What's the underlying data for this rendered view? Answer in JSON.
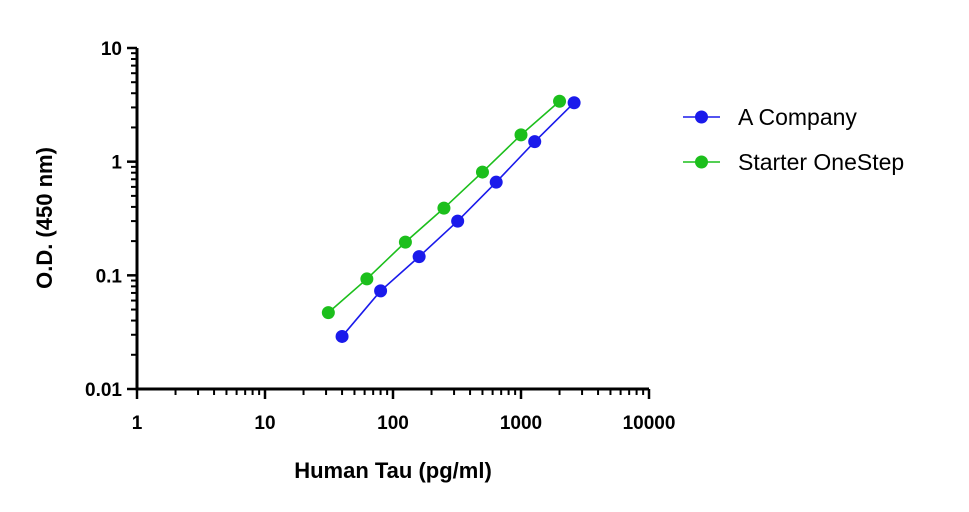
{
  "chart_data": {
    "type": "scatter",
    "title": "",
    "xlabel": "Human Tau (pg/ml)",
    "ylabel": "O.D. (450 nm)",
    "x_scale": "log",
    "y_scale": "log",
    "xlim": [
      1,
      10000
    ],
    "ylim": [
      0.01,
      10
    ],
    "x_ticks": [
      "1",
      "10",
      "100",
      "1000",
      "10000"
    ],
    "y_ticks": [
      "10",
      "1",
      "0.1",
      "0.01"
    ],
    "grid": false,
    "legend_position": "right",
    "series": [
      {
        "name": "A Company",
        "color": "#1a1aeb",
        "x": [
          40,
          80,
          160,
          320,
          640,
          1280,
          2600
        ],
        "y": [
          0.029,
          0.073,
          0.146,
          0.3,
          0.66,
          1.5,
          3.3
        ]
      },
      {
        "name": "Starter OneStep",
        "color": "#1cbf1c",
        "x": [
          31.25,
          62.5,
          125,
          250,
          500,
          1000,
          2000
        ],
        "y": [
          0.047,
          0.093,
          0.196,
          0.39,
          0.81,
          1.72,
          3.4
        ]
      }
    ]
  }
}
